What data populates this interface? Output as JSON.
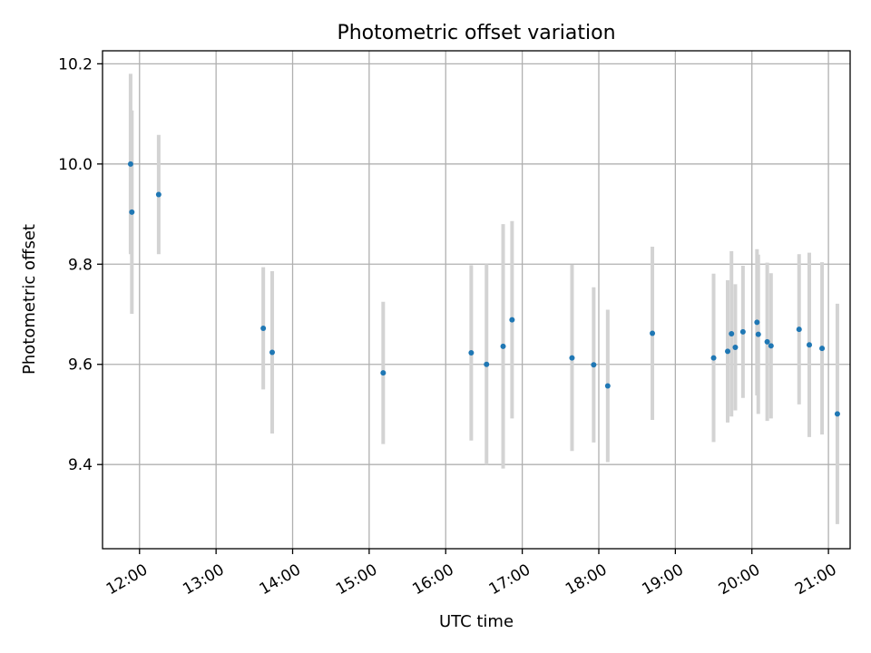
{
  "chart_data": {
    "type": "scatter",
    "title": "Photometric offset variation",
    "xlabel": "UTC time",
    "ylabel": "Photometric offset",
    "xlim": [
      "11:31",
      "21:17"
    ],
    "ylim": [
      9.232,
      10.226
    ],
    "grid": true,
    "point_color": "#1f77b4",
    "errorbar_color": "#d3d3d3",
    "x_ticks": [
      "12:00",
      "13:00",
      "14:00",
      "15:00",
      "16:00",
      "17:00",
      "18:00",
      "19:00",
      "20:00",
      "21:00"
    ],
    "y_ticks": [
      "9.4",
      "9.6",
      "9.8",
      "10.0",
      "10.2"
    ],
    "series": [
      {
        "points": [
          {
            "x": "11:53",
            "y": 10.0,
            "err": 0.18
          },
          {
            "x": "11:54",
            "y": 9.904,
            "err": 0.203
          },
          {
            "x": "12:15",
            "y": 9.939,
            "err": 0.119
          },
          {
            "x": "13:37",
            "y": 9.672,
            "err": 0.122
          },
          {
            "x": "13:44",
            "y": 9.624,
            "err": 0.162
          },
          {
            "x": "15:11",
            "y": 9.583,
            "err": 0.142
          },
          {
            "x": "16:20",
            "y": 9.623,
            "err": 0.175
          },
          {
            "x": "16:32",
            "y": 9.6,
            "err": 0.2
          },
          {
            "x": "16:45",
            "y": 9.636,
            "err": 0.244
          },
          {
            "x": "16:52",
            "y": 9.689,
            "err": 0.197
          },
          {
            "x": "17:39",
            "y": 9.613,
            "err": 0.186
          },
          {
            "x": "17:56",
            "y": 9.599,
            "err": 0.155
          },
          {
            "x": "18:07",
            "y": 9.557,
            "err": 0.152
          },
          {
            "x": "18:42",
            "y": 9.662,
            "err": 0.173
          },
          {
            "x": "19:30",
            "y": 9.613,
            "err": 0.168
          },
          {
            "x": "19:41",
            "y": 9.626,
            "err": 0.142
          },
          {
            "x": "19:44",
            "y": 9.661,
            "err": 0.165
          },
          {
            "x": "19:47",
            "y": 9.634,
            "err": 0.126
          },
          {
            "x": "19:53",
            "y": 9.665,
            "err": 0.132
          },
          {
            "x": "20:04",
            "y": 9.684,
            "err": 0.146
          },
          {
            "x": "20:05",
            "y": 9.66,
            "err": 0.159
          },
          {
            "x": "20:12",
            "y": 9.645,
            "err": 0.158
          },
          {
            "x": "20:15",
            "y": 9.637,
            "err": 0.145
          },
          {
            "x": "20:37",
            "y": 9.67,
            "err": 0.15
          },
          {
            "x": "20:45",
            "y": 9.639,
            "err": 0.184
          },
          {
            "x": "20:55",
            "y": 9.632,
            "err": 0.172
          },
          {
            "x": "21:07",
            "y": 9.501,
            "err": 0.22
          }
        ]
      }
    ]
  }
}
